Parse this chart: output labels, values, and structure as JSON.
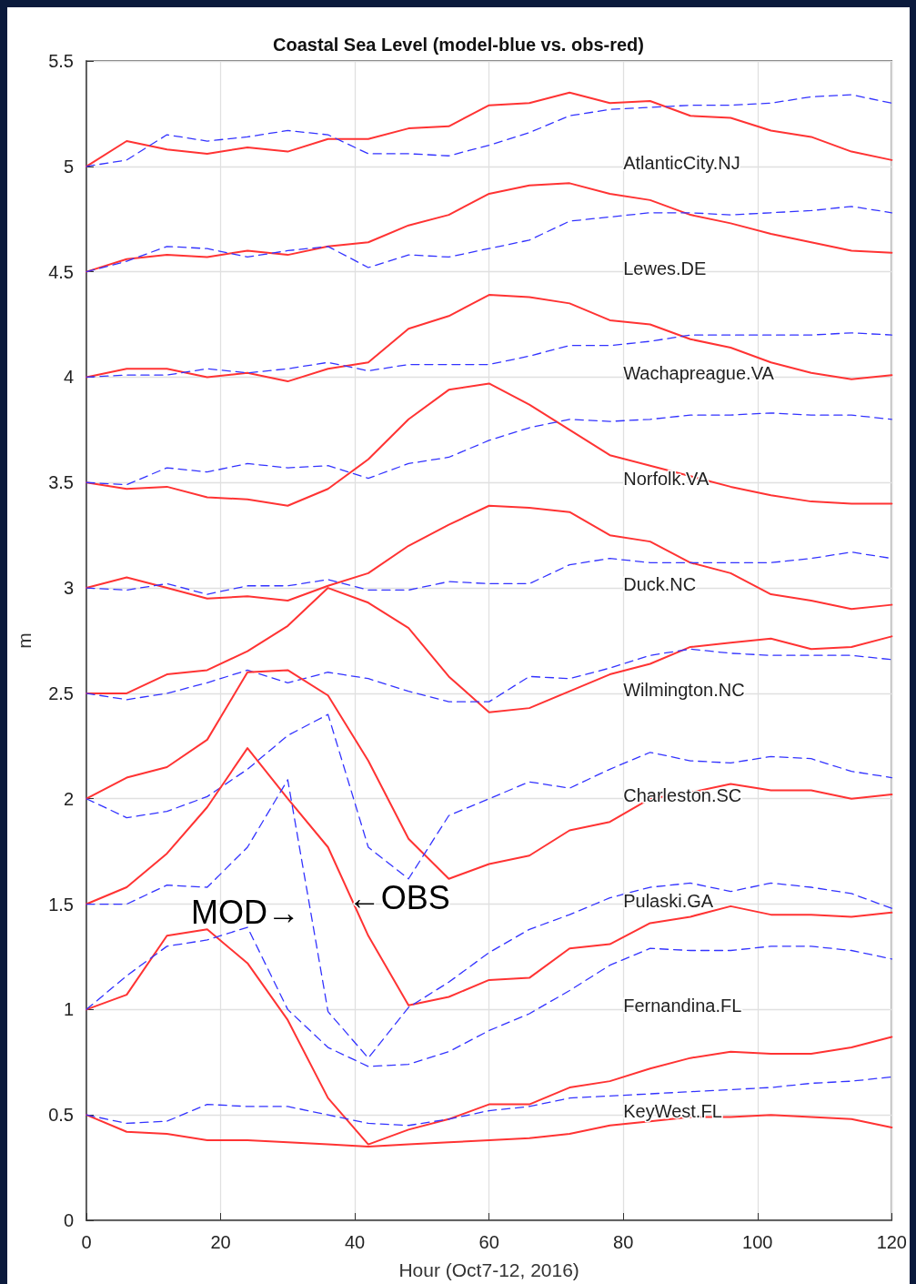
{
  "chart_data": {
    "type": "line",
    "title": "Coastal Sea Level (model-blue vs. obs-red)",
    "xlabel": "Hour (Oct7-12, 2016)",
    "ylabel": "m",
    "x": [
      0,
      6,
      12,
      18,
      24,
      30,
      36,
      42,
      48,
      54,
      60,
      66,
      72,
      78,
      84,
      90,
      96,
      102,
      108,
      114,
      120
    ],
    "xlim": [
      0,
      120
    ],
    "xticks": [
      0,
      20,
      40,
      60,
      80,
      100,
      120
    ],
    "ylim": [
      0,
      5.5
    ],
    "yticks": [
      0,
      0.5,
      1,
      1.5,
      2,
      2.5,
      3,
      3.5,
      4,
      4.5,
      5,
      5.5
    ],
    "grid": true,
    "marker": "none",
    "series": [
      {
        "color": "#ff3333",
        "line_style": "solid",
        "values": [
          5.0,
          5.12,
          5.08,
          5.06,
          5.09,
          5.07,
          5.13,
          5.13,
          5.18,
          5.19,
          5.29,
          5.3,
          5.35,
          5.3,
          5.31,
          5.24,
          5.23,
          5.17,
          5.14,
          5.07,
          5.03
        ]
      },
      {
        "color": "#3333ff",
        "line_style": "dashed",
        "values": [
          5.0,
          5.03,
          5.15,
          5.12,
          5.14,
          5.17,
          5.15,
          5.06,
          5.06,
          5.05,
          5.1,
          5.16,
          5.24,
          5.27,
          5.28,
          5.29,
          5.29,
          5.3,
          5.33,
          5.34,
          5.3
        ]
      },
      {
        "color": "#ff3333",
        "line_style": "solid",
        "values": [
          4.5,
          4.56,
          4.58,
          4.57,
          4.6,
          4.58,
          4.62,
          4.64,
          4.72,
          4.77,
          4.87,
          4.91,
          4.92,
          4.87,
          4.84,
          4.77,
          4.73,
          4.68,
          4.64,
          4.6,
          4.59
        ]
      },
      {
        "color": "#3333ff",
        "line_style": "dashed",
        "values": [
          4.5,
          4.55,
          4.62,
          4.61,
          4.57,
          4.6,
          4.62,
          4.52,
          4.58,
          4.57,
          4.61,
          4.65,
          4.74,
          4.76,
          4.78,
          4.78,
          4.77,
          4.78,
          4.79,
          4.81,
          4.78
        ]
      },
      {
        "color": "#ff3333",
        "line_style": "solid",
        "values": [
          4.0,
          4.04,
          4.04,
          4.0,
          4.02,
          3.98,
          4.04,
          4.07,
          4.23,
          4.29,
          4.39,
          4.38,
          4.35,
          4.27,
          4.25,
          4.18,
          4.14,
          4.07,
          4.02,
          3.99,
          4.01
        ]
      },
      {
        "color": "#3333ff",
        "line_style": "dashed",
        "values": [
          4.0,
          4.01,
          4.01,
          4.04,
          4.02,
          4.04,
          4.07,
          4.03,
          4.06,
          4.06,
          4.06,
          4.1,
          4.15,
          4.15,
          4.17,
          4.2,
          4.2,
          4.2,
          4.2,
          4.21,
          4.2
        ]
      },
      {
        "color": "#ff3333",
        "line_style": "solid",
        "values": [
          3.5,
          3.47,
          3.48,
          3.43,
          3.42,
          3.39,
          3.47,
          3.61,
          3.8,
          3.94,
          3.97,
          3.87,
          3.75,
          3.63,
          3.58,
          3.53,
          3.48,
          3.44,
          3.41,
          3.4,
          3.4
        ]
      },
      {
        "color": "#3333ff",
        "line_style": "dashed",
        "values": [
          3.5,
          3.49,
          3.57,
          3.55,
          3.59,
          3.57,
          3.58,
          3.52,
          3.59,
          3.62,
          3.7,
          3.76,
          3.8,
          3.79,
          3.8,
          3.82,
          3.82,
          3.83,
          3.82,
          3.82,
          3.8
        ]
      },
      {
        "color": "#ff3333",
        "line_style": "solid",
        "values": [
          3.0,
          3.05,
          3.0,
          2.95,
          2.96,
          2.94,
          3.01,
          3.07,
          3.2,
          3.3,
          3.39,
          3.38,
          3.36,
          3.25,
          3.22,
          3.12,
          3.07,
          2.97,
          2.94,
          2.9,
          2.92
        ]
      },
      {
        "color": "#3333ff",
        "line_style": "dashed",
        "values": [
          3.0,
          2.99,
          3.02,
          2.97,
          3.01,
          3.01,
          3.04,
          2.99,
          2.99,
          3.03,
          3.02,
          3.02,
          3.11,
          3.14,
          3.12,
          3.12,
          3.12,
          3.12,
          3.14,
          3.17,
          3.14
        ]
      },
      {
        "color": "#ff3333",
        "line_style": "solid",
        "values": [
          2.5,
          2.5,
          2.59,
          2.61,
          2.7,
          2.82,
          3.0,
          2.93,
          2.81,
          2.58,
          2.41,
          2.43,
          2.51,
          2.59,
          2.64,
          2.72,
          2.74,
          2.76,
          2.71,
          2.72,
          2.77
        ]
      },
      {
        "color": "#3333ff",
        "line_style": "dashed",
        "values": [
          2.5,
          2.47,
          2.5,
          2.55,
          2.61,
          2.55,
          2.6,
          2.57,
          2.51,
          2.46,
          2.46,
          2.58,
          2.57,
          2.62,
          2.68,
          2.71,
          2.69,
          2.68,
          2.68,
          2.68,
          2.66
        ]
      },
      {
        "color": "#ff3333",
        "line_style": "solid",
        "values": [
          2.0,
          2.1,
          2.15,
          2.28,
          2.6,
          2.61,
          2.49,
          2.18,
          1.81,
          1.62,
          1.69,
          1.73,
          1.85,
          1.89,
          2.0,
          2.03,
          2.07,
          2.04,
          2.04,
          2.0,
          2.02
        ]
      },
      {
        "color": "#3333ff",
        "line_style": "dashed",
        "values": [
          2.0,
          1.91,
          1.94,
          2.01,
          2.14,
          2.3,
          2.4,
          1.77,
          1.62,
          1.92,
          2.0,
          2.08,
          2.05,
          2.14,
          2.22,
          2.18,
          2.17,
          2.2,
          2.19,
          2.13,
          2.1
        ]
      },
      {
        "color": "#ff3333",
        "line_style": "solid",
        "values": [
          1.5,
          1.58,
          1.74,
          1.96,
          2.24,
          2.0,
          1.77,
          1.35,
          1.02,
          1.06,
          1.14,
          1.15,
          1.29,
          1.31,
          1.41,
          1.44,
          1.49,
          1.45,
          1.45,
          1.44,
          1.46
        ]
      },
      {
        "color": "#3333ff",
        "line_style": "dashed",
        "values": [
          1.5,
          1.5,
          1.59,
          1.58,
          1.77,
          2.09,
          0.99,
          0.77,
          1.01,
          1.13,
          1.27,
          1.38,
          1.45,
          1.53,
          1.58,
          1.6,
          1.56,
          1.6,
          1.58,
          1.55,
          1.48
        ]
      },
      {
        "color": "#ff3333",
        "line_style": "solid",
        "values": [
          1.0,
          1.07,
          1.35,
          1.38,
          1.22,
          0.95,
          0.58,
          0.36,
          0.43,
          0.48,
          0.55,
          0.55,
          0.63,
          0.66,
          0.72,
          0.77,
          0.8,
          0.79,
          0.79,
          0.82,
          0.87
        ]
      },
      {
        "color": "#3333ff",
        "line_style": "dashed",
        "values": [
          1.0,
          1.16,
          1.3,
          1.33,
          1.39,
          1.0,
          0.82,
          0.73,
          0.74,
          0.8,
          0.9,
          0.98,
          1.09,
          1.21,
          1.29,
          1.28,
          1.28,
          1.3,
          1.3,
          1.28,
          1.24
        ]
      },
      {
        "color": "#ff3333",
        "line_style": "solid",
        "values": [
          0.5,
          0.42,
          0.41,
          0.38,
          0.38,
          0.37,
          0.36,
          0.35,
          0.36,
          0.37,
          0.38,
          0.39,
          0.41,
          0.45,
          0.47,
          0.49,
          0.49,
          0.5,
          0.49,
          0.48,
          0.44
        ]
      },
      {
        "color": "#3333ff",
        "line_style": "dashed",
        "values": [
          0.5,
          0.46,
          0.47,
          0.55,
          0.54,
          0.54,
          0.5,
          0.46,
          0.45,
          0.48,
          0.52,
          0.54,
          0.58,
          0.59,
          0.6,
          0.61,
          0.62,
          0.63,
          0.65,
          0.66,
          0.68
        ]
      }
    ],
    "annotations": [
      "AtlanticCity.NJ",
      "Lewes.DE",
      "Wachapreague.VA",
      "Norfolk.VA",
      "Duck.NC",
      "Wilmington.NC",
      "Charleston.SC",
      "Pulaski.GA",
      "Fernandina.FL",
      "KeyWest.FL",
      "MOD→",
      "←OBS"
    ]
  }
}
